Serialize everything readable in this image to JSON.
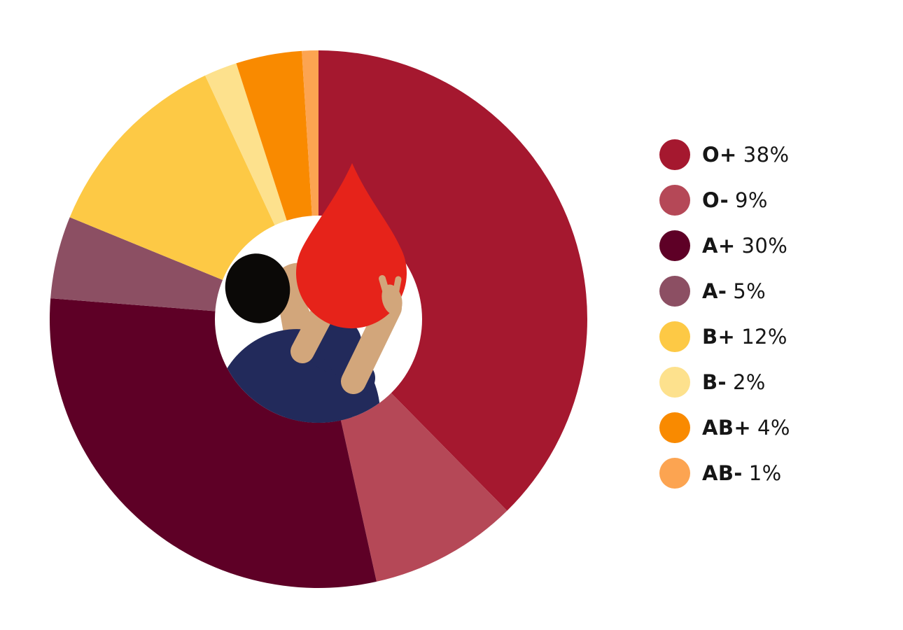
{
  "chart_data": {
    "type": "pie",
    "variant": "donut",
    "unit": "%",
    "start_angle_deg": 0,
    "direction": "clockwise",
    "donut_hole_ratio": 0.39,
    "legend_position": "right",
    "background": "#FFFFFF",
    "center_illustration": "person-holding-blood-drop",
    "slices": [
      {
        "label": "O+",
        "value": 38,
        "display": "38%",
        "color": "#A5182F"
      },
      {
        "label": "O-",
        "value": 9,
        "display": "9%",
        "color": "#B54857"
      },
      {
        "label": "A+",
        "value": 30,
        "display": "30%",
        "color": "#5E0026"
      },
      {
        "label": "A-",
        "value": 5,
        "display": "5%",
        "color": "#8C4F63"
      },
      {
        "label": "B+",
        "value": 12,
        "display": "12%",
        "color": "#FDC945"
      },
      {
        "label": "B-",
        "value": 2,
        "display": "2%",
        "color": "#FDE18D"
      },
      {
        "label": "AB+",
        "value": 4,
        "display": "4%",
        "color": "#F98A00"
      },
      {
        "label": "AB-",
        "value": 1,
        "display": "1%",
        "color": "#FCA451"
      }
    ],
    "illustration_colors": {
      "blood_drop": "#E6231A",
      "shirt": "#222A5B",
      "skin": "#D2A67B",
      "hair": "#0B0907",
      "hole": "#FFFFFF"
    }
  }
}
